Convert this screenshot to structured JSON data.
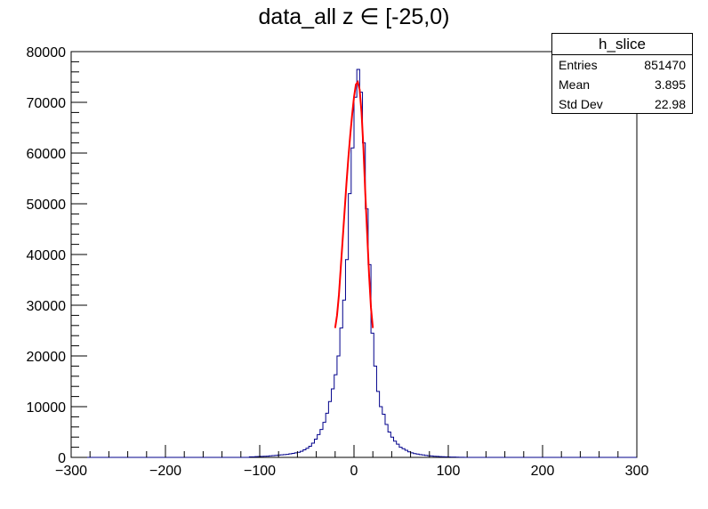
{
  "chart_data": {
    "type": "histogram",
    "title": "data_all z ∈ [-25,0)",
    "xlim": [
      -300,
      300
    ],
    "ylim": [
      0,
      80000
    ],
    "x_ticks": [
      -300,
      -200,
      -100,
      0,
      100,
      200,
      300
    ],
    "y_ticks": [
      0,
      10000,
      20000,
      30000,
      40000,
      50000,
      60000,
      70000,
      80000
    ],
    "x_tick_labels": [
      "−300",
      "−200",
      "−100",
      "0",
      "100",
      "200",
      "300"
    ],
    "y_tick_labels": [
      "0",
      "10000",
      "20000",
      "30000",
      "40000",
      "50000",
      "60000",
      "70000",
      "80000"
    ],
    "xlabel": "",
    "ylabel": "",
    "grid": false,
    "stats": {
      "name": "h_slice",
      "rows": [
        {
          "label": "Entries",
          "value": "851470"
        },
        {
          "label": "Mean",
          "value": "3.895"
        },
        {
          "label": "Std Dev",
          "value": "22.98"
        }
      ]
    },
    "series": [
      {
        "style": "histogram",
        "color": "#00008b",
        "bin_width": 3,
        "bin_start": -300,
        "nonzero_bins": [
          {
            "x": -111,
            "y": 100
          },
          {
            "x": -108,
            "y": 120
          },
          {
            "x": -105,
            "y": 150
          },
          {
            "x": -102,
            "y": 170
          },
          {
            "x": -99,
            "y": 200
          },
          {
            "x": -96,
            "y": 220
          },
          {
            "x": -93,
            "y": 250
          },
          {
            "x": -90,
            "y": 300
          },
          {
            "x": -87,
            "y": 350
          },
          {
            "x": -84,
            "y": 400
          },
          {
            "x": -81,
            "y": 450
          },
          {
            "x": -78,
            "y": 500
          },
          {
            "x": -75,
            "y": 550
          },
          {
            "x": -72,
            "y": 600
          },
          {
            "x": -69,
            "y": 700
          },
          {
            "x": -66,
            "y": 800
          },
          {
            "x": -63,
            "y": 900
          },
          {
            "x": -60,
            "y": 1000
          },
          {
            "x": -57,
            "y": 1200
          },
          {
            "x": -54,
            "y": 1500
          },
          {
            "x": -51,
            "y": 1800
          },
          {
            "x": -48,
            "y": 2200
          },
          {
            "x": -45,
            "y": 2800
          },
          {
            "x": -42,
            "y": 3600
          },
          {
            "x": -39,
            "y": 4500
          },
          {
            "x": -36,
            "y": 5500
          },
          {
            "x": -33,
            "y": 6900
          },
          {
            "x": -30,
            "y": 8700
          },
          {
            "x": -27,
            "y": 11000
          },
          {
            "x": -24,
            "y": 13500
          },
          {
            "x": -21,
            "y": 16300
          },
          {
            "x": -18,
            "y": 20000
          },
          {
            "x": -15,
            "y": 25500
          },
          {
            "x": -12,
            "y": 31000
          },
          {
            "x": -9,
            "y": 39000
          },
          {
            "x": -6,
            "y": 52000
          },
          {
            "x": -3,
            "y": 61000
          },
          {
            "x": 0,
            "y": 71000
          },
          {
            "x": 3,
            "y": 76500
          },
          {
            "x": 6,
            "y": 72000
          },
          {
            "x": 9,
            "y": 62000
          },
          {
            "x": 12,
            "y": 49000
          },
          {
            "x": 15,
            "y": 38000
          },
          {
            "x": 18,
            "y": 24500
          },
          {
            "x": 21,
            "y": 18000
          },
          {
            "x": 24,
            "y": 13000
          },
          {
            "x": 27,
            "y": 10000
          },
          {
            "x": 30,
            "y": 8500
          },
          {
            "x": 33,
            "y": 6500
          },
          {
            "x": 36,
            "y": 5000
          },
          {
            "x": 39,
            "y": 4000
          },
          {
            "x": 42,
            "y": 3200
          },
          {
            "x": 45,
            "y": 2600
          },
          {
            "x": 48,
            "y": 2000
          },
          {
            "x": 51,
            "y": 1700
          },
          {
            "x": 54,
            "y": 1400
          },
          {
            "x": 57,
            "y": 1100
          },
          {
            "x": 60,
            "y": 900
          },
          {
            "x": 63,
            "y": 750
          },
          {
            "x": 66,
            "y": 650
          },
          {
            "x": 69,
            "y": 550
          },
          {
            "x": 72,
            "y": 480
          },
          {
            "x": 75,
            "y": 400
          },
          {
            "x": 78,
            "y": 330
          },
          {
            "x": 81,
            "y": 280
          },
          {
            "x": 84,
            "y": 230
          },
          {
            "x": 87,
            "y": 190
          },
          {
            "x": 90,
            "y": 160
          },
          {
            "x": 93,
            "y": 130
          },
          {
            "x": 96,
            "y": 110
          },
          {
            "x": 99,
            "y": 90
          },
          {
            "x": 102,
            "y": 70
          },
          {
            "x": 105,
            "y": 55
          },
          {
            "x": 108,
            "y": 40
          },
          {
            "x": 111,
            "y": 30
          },
          {
            "x": 114,
            "y": 20
          }
        ]
      },
      {
        "style": "line",
        "color": "#ff0000",
        "points": [
          {
            "x": -20,
            "y": 25500
          },
          {
            "x": -18,
            "y": 28000
          },
          {
            "x": -16,
            "y": 32000
          },
          {
            "x": -14,
            "y": 37500
          },
          {
            "x": -12,
            "y": 43000
          },
          {
            "x": -10,
            "y": 48500
          },
          {
            "x": -8,
            "y": 54000
          },
          {
            "x": -6,
            "y": 59000
          },
          {
            "x": -4,
            "y": 63500
          },
          {
            "x": -2,
            "y": 67500
          },
          {
            "x": 0,
            "y": 71000
          },
          {
            "x": 2,
            "y": 73500
          },
          {
            "x": 4,
            "y": 74000
          },
          {
            "x": 6,
            "y": 72500
          },
          {
            "x": 8,
            "y": 68000
          },
          {
            "x": 10,
            "y": 61000
          },
          {
            "x": 12,
            "y": 52000
          },
          {
            "x": 14,
            "y": 44000
          },
          {
            "x": 16,
            "y": 36000
          },
          {
            "x": 18,
            "y": 29500
          },
          {
            "x": 20,
            "y": 25500
          }
        ]
      }
    ]
  }
}
